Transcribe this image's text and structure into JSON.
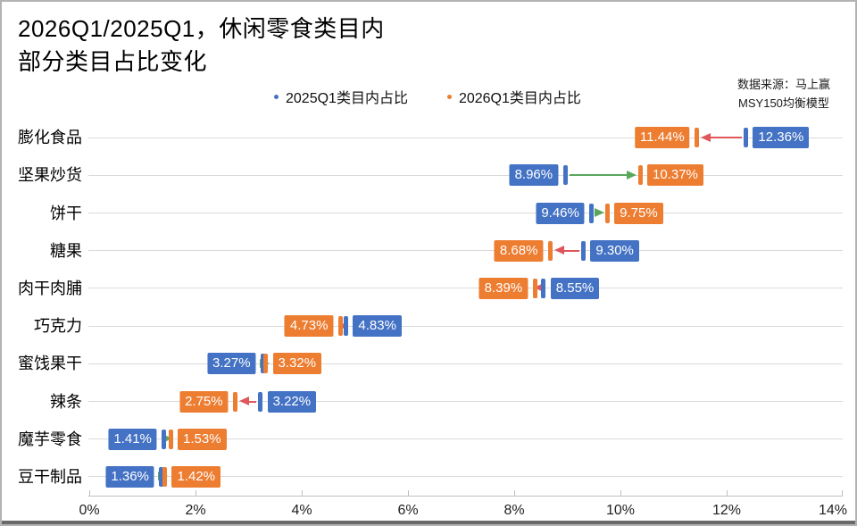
{
  "title": {
    "line1": "2026Q1/2025Q1，休闲零食类目内",
    "line2": "部分类目占比变化"
  },
  "source": {
    "line1": "数据来源：马上赢",
    "line2": "MSY150均衡模型"
  },
  "legend": {
    "items": [
      {
        "label": "2025Q1类目内占比",
        "color": "#4472C4"
      },
      {
        "label": "2026Q1类目内占比",
        "color": "#ED7D31"
      }
    ]
  },
  "chart_data": {
    "type": "scatter",
    "subtype": "dumbbell-arrow",
    "title": "2026Q1/2025Q1，休闲零食类目内部分类目占比变化",
    "legend_position": "top",
    "grid": true,
    "categories": [
      "膨化食品",
      "坚果炒货",
      "饼干",
      "糖果",
      "肉干肉脯",
      "巧克力",
      "蜜饯果干",
      "辣条",
      "魔芋零食",
      "豆干制品"
    ],
    "series": [
      {
        "name": "2025Q1类目内占比",
        "color": "#4472C4",
        "values": [
          12.36,
          8.96,
          9.46,
          9.3,
          8.55,
          4.83,
          3.27,
          3.22,
          1.41,
          1.36
        ],
        "labels": [
          "12.36%",
          "8.96%",
          "9.46%",
          "9.30%",
          "8.55%",
          "4.83%",
          "3.27%",
          "3.22%",
          "1.41%",
          "1.36%"
        ]
      },
      {
        "name": "2026Q1类目内占比",
        "color": "#ED7D31",
        "values": [
          11.44,
          10.37,
          9.75,
          8.68,
          8.39,
          4.73,
          3.32,
          2.75,
          1.53,
          1.42
        ],
        "labels": [
          "11.44%",
          "10.37%",
          "9.75%",
          "8.68%",
          "8.39%",
          "4.73%",
          "3.32%",
          "2.75%",
          "1.53%",
          "1.42%"
        ]
      }
    ],
    "change_colors": {
      "increase": "#5AA75C",
      "decrease": "#E0565B"
    },
    "x_axis": {
      "min": 0,
      "max": 14,
      "tick_labels": [
        "0%",
        "2%",
        "4%",
        "6%",
        "8%",
        "10%",
        "12%",
        "14%"
      ]
    }
  }
}
